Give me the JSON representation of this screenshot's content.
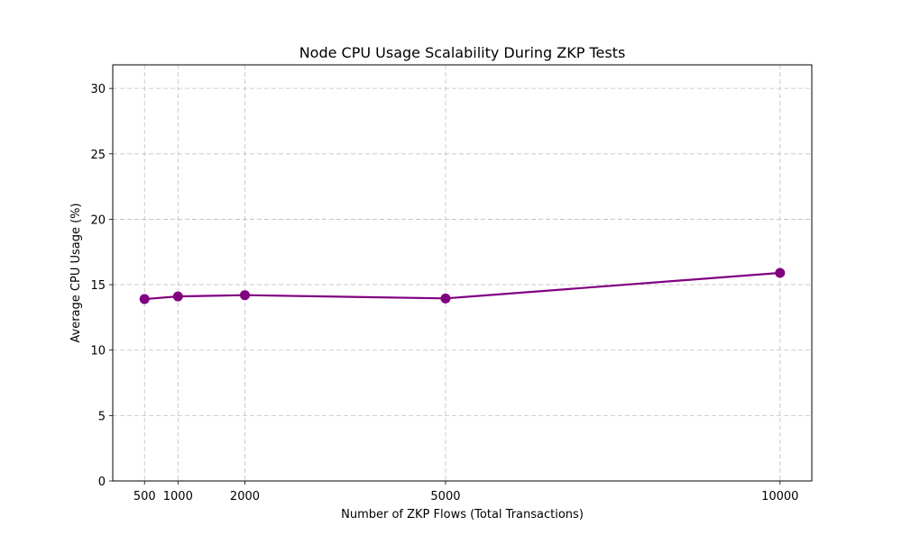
{
  "chart_data": {
    "type": "line",
    "title": "Node CPU Usage Scalability During ZKP Tests",
    "xlabel": "Number of ZKP Flows (Total Transactions)",
    "ylabel": "Average CPU Usage (%)",
    "x": [
      500,
      1000,
      2000,
      5000,
      10000
    ],
    "series": [
      {
        "values": [
          13.9,
          14.1,
          14.2,
          13.95,
          15.9
        ],
        "color": "#800080",
        "marker": "circle"
      }
    ],
    "xticks": [
      500,
      1000,
      2000,
      5000,
      10000
    ],
    "yticks": [
      0,
      5,
      10,
      15,
      20,
      25,
      30
    ],
    "xlim": [
      25,
      10475
    ],
    "ylim": [
      0,
      31.8
    ],
    "grid": true,
    "grid_style": "dashed",
    "line_color": "#800080"
  }
}
